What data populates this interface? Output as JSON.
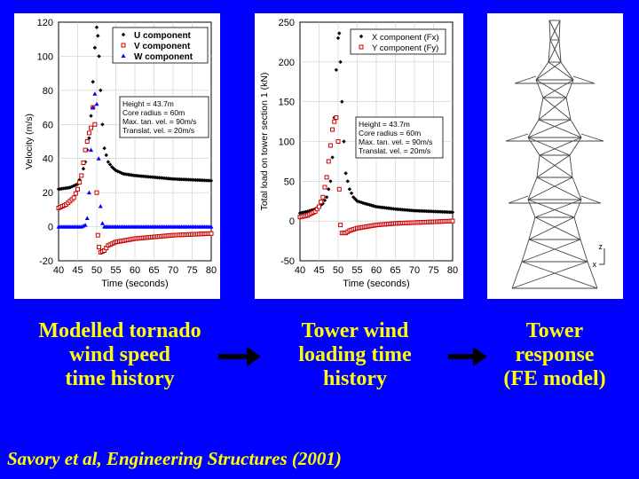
{
  "captions": {
    "left": [
      "Modelled tornado",
      "wind speed",
      "time history"
    ],
    "middle": [
      "Tower wind",
      "loading time",
      "history"
    ],
    "right": [
      "Tower",
      "response",
      "(FE model)"
    ]
  },
  "citation": "Savory et al, Engineering Structures (2001)",
  "fe_axes": {
    "z": "z",
    "x": "x"
  },
  "colors": {
    "background": "#0000FF",
    "caption": "#FFFF00",
    "u": "#000000",
    "v": "#CC0000",
    "w": "#0000FF"
  },
  "chart_data": [
    {
      "type": "scatter",
      "xlabel": "Time    (seconds)",
      "ylabel": "Velocity   (m/s)",
      "xlim": [
        40,
        80
      ],
      "ylim": [
        -20,
        120
      ],
      "xticks": [
        40,
        45,
        50,
        55,
        60,
        65,
        70,
        75,
        80
      ],
      "yticks": [
        -20,
        0,
        20,
        40,
        60,
        80,
        100,
        120
      ],
      "legend_position": "top-right",
      "annotation": [
        "Height = 43.7m",
        "Core radius = 60m",
        "Max. tan. vel. = 90m/s",
        "Translat. vel. = 20m/s"
      ],
      "series": [
        {
          "name": "U component",
          "marker": "diamond",
          "color": "#000000",
          "x": [
            40,
            43,
            45,
            46,
            47,
            48,
            48.5,
            49,
            49.5,
            50,
            50.3,
            50.6,
            51,
            51.5,
            52,
            53,
            54,
            55,
            57,
            60,
            65,
            70,
            75,
            80
          ],
          "y": [
            22,
            23,
            25,
            30,
            38,
            52,
            65,
            85,
            105,
            117,
            112,
            100,
            80,
            60,
            46,
            38,
            35,
            33,
            31,
            30,
            29,
            28,
            27.5,
            27
          ]
        },
        {
          "name": "V component",
          "marker": "square",
          "color": "#CC0000",
          "x": [
            40,
            42,
            44,
            45,
            46,
            47,
            48,
            48.5,
            49,
            49.5,
            50,
            50.3,
            50.6,
            51,
            52,
            53,
            55,
            60,
            65,
            70,
            75,
            80
          ],
          "y": [
            11,
            13,
            17,
            22,
            30,
            45,
            55,
            58,
            70,
            60,
            20,
            -5,
            -12,
            -15,
            -14,
            -11,
            -9,
            -7,
            -6,
            -5,
            -4.5,
            -4
          ]
        },
        {
          "name": "W component",
          "marker": "triangle",
          "color": "#0000FF",
          "x": [
            40,
            46,
            47,
            47.5,
            48,
            48.5,
            49,
            49.5,
            50,
            50.5,
            51,
            51.5,
            52,
            55,
            60,
            70,
            80
          ],
          "y": [
            0,
            0,
            1,
            5,
            20,
            45,
            70,
            78,
            72,
            40,
            12,
            2,
            0,
            0,
            0,
            0,
            0
          ]
        }
      ]
    },
    {
      "type": "scatter",
      "xlabel": "Time    (seconds)",
      "ylabel": "Total load on tower section 1   (kN)",
      "xlim": [
        40,
        80
      ],
      "ylim": [
        -50,
        250
      ],
      "xticks": [
        40,
        45,
        50,
        55,
        60,
        65,
        70,
        75,
        80
      ],
      "yticks": [
        -50,
        0,
        50,
        100,
        150,
        200,
        250
      ],
      "legend_position": "top-right",
      "annotation": [
        "Height = 43.7m",
        "Core radius = 60m",
        "Max. tan. vel. = 90m/s",
        "Translat. vel. = 20m/s"
      ],
      "series": [
        {
          "name": "X component (Fx)",
          "marker": "diamond",
          "color": "#000000",
          "x": [
            40,
            42,
            44,
            45,
            46,
            47,
            48,
            48.5,
            49,
            49.5,
            50,
            50.3,
            50.6,
            51,
            51.5,
            52,
            53,
            54,
            55,
            57,
            60,
            65,
            70,
            75,
            80
          ],
          "y": [
            10,
            12,
            15,
            18,
            22,
            30,
            50,
            80,
            130,
            190,
            230,
            236,
            200,
            150,
            100,
            60,
            40,
            30,
            25,
            22,
            18,
            15,
            13,
            12,
            11
          ]
        },
        {
          "name": "Y component (Fy)",
          "marker": "square",
          "color": "#CC0000",
          "x": [
            40,
            42,
            44,
            45,
            46,
            47,
            47.5,
            48,
            48.5,
            49,
            49.5,
            50,
            50.3,
            50.6,
            51,
            52,
            53,
            55,
            60,
            65,
            70,
            75,
            80
          ],
          "y": [
            5,
            7,
            12,
            18,
            30,
            55,
            75,
            95,
            115,
            125,
            130,
            100,
            40,
            -5,
            -15,
            -15,
            -12,
            -9,
            -5,
            -3,
            -2,
            -1,
            0
          ]
        }
      ]
    }
  ]
}
